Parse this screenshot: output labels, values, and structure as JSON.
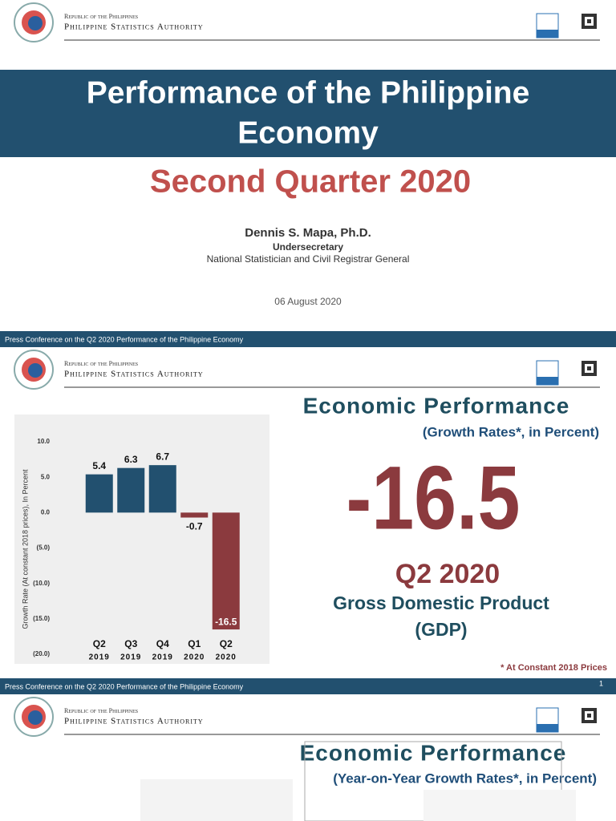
{
  "slides": [
    {
      "header": {
        "republic": "Republic of the Philippines",
        "agency": "Philippine Statistics Authority"
      },
      "title": [
        "Performance of the Philippine",
        "Economy"
      ],
      "subtitle": "Second Quarter 2020",
      "presenter": "Dennis S. Mapa, Ph.D.",
      "position": "Undersecretary",
      "role": "National Statistician and Civil Registrar General",
      "date": "06 August 2020",
      "footer": "Press Conference on the Q2 2020 Performance of the Philippine Economy"
    },
    {
      "header": {
        "republic": "Republic of the Philippines",
        "agency": "Philippine Statistics Authority"
      },
      "title": "Economic Performance",
      "subtitle": "(Growth Rates*, in Percent)",
      "headline": "-16.5",
      "period": "Q2 2020",
      "indicator": [
        "Gross Domestic Product",
        "(GDP)"
      ],
      "note": "* At Constant 2018 Prices",
      "footer": "Press Conference on the Q2 2020 Performance of the Philippine Economy",
      "page": "1",
      "chart": {
        "type": "bar",
        "y_label": "Growth Rate (At constant 2018 prices), In Percent",
        "quarters": [
          "Q2",
          "Q3",
          "Q4",
          "Q1",
          "Q2"
        ],
        "years": [
          "2019",
          "2019",
          "2019",
          "2020",
          "2020"
        ],
        "values": [
          5.4,
          6.3,
          6.7,
          -0.7,
          -16.5
        ],
        "colors": [
          "#22506f",
          "#22506f",
          "#22506f",
          "#8b3a3e",
          "#8b3a3e"
        ],
        "ylim": [
          -20,
          10
        ],
        "yticks": [
          {
            "value": -20,
            "label": "(20.0)"
          },
          {
            "value": -15,
            "label": "(15.0)"
          },
          {
            "value": -10,
            "label": "(10.0)"
          },
          {
            "value": -5,
            "label": "(5.0)"
          },
          {
            "value": 0,
            "label": "0.0"
          },
          {
            "value": 5,
            "label": "5.0"
          },
          {
            "value": 10,
            "label": "10.0"
          }
        ]
      }
    },
    {
      "header": {
        "republic": "Republic of the Philippines",
        "agency": "Philippine Statistics Authority"
      },
      "title": "Economic Performance",
      "subtitle": "(Year-on-Year Growth Rates*, in Percent)"
    }
  ]
}
